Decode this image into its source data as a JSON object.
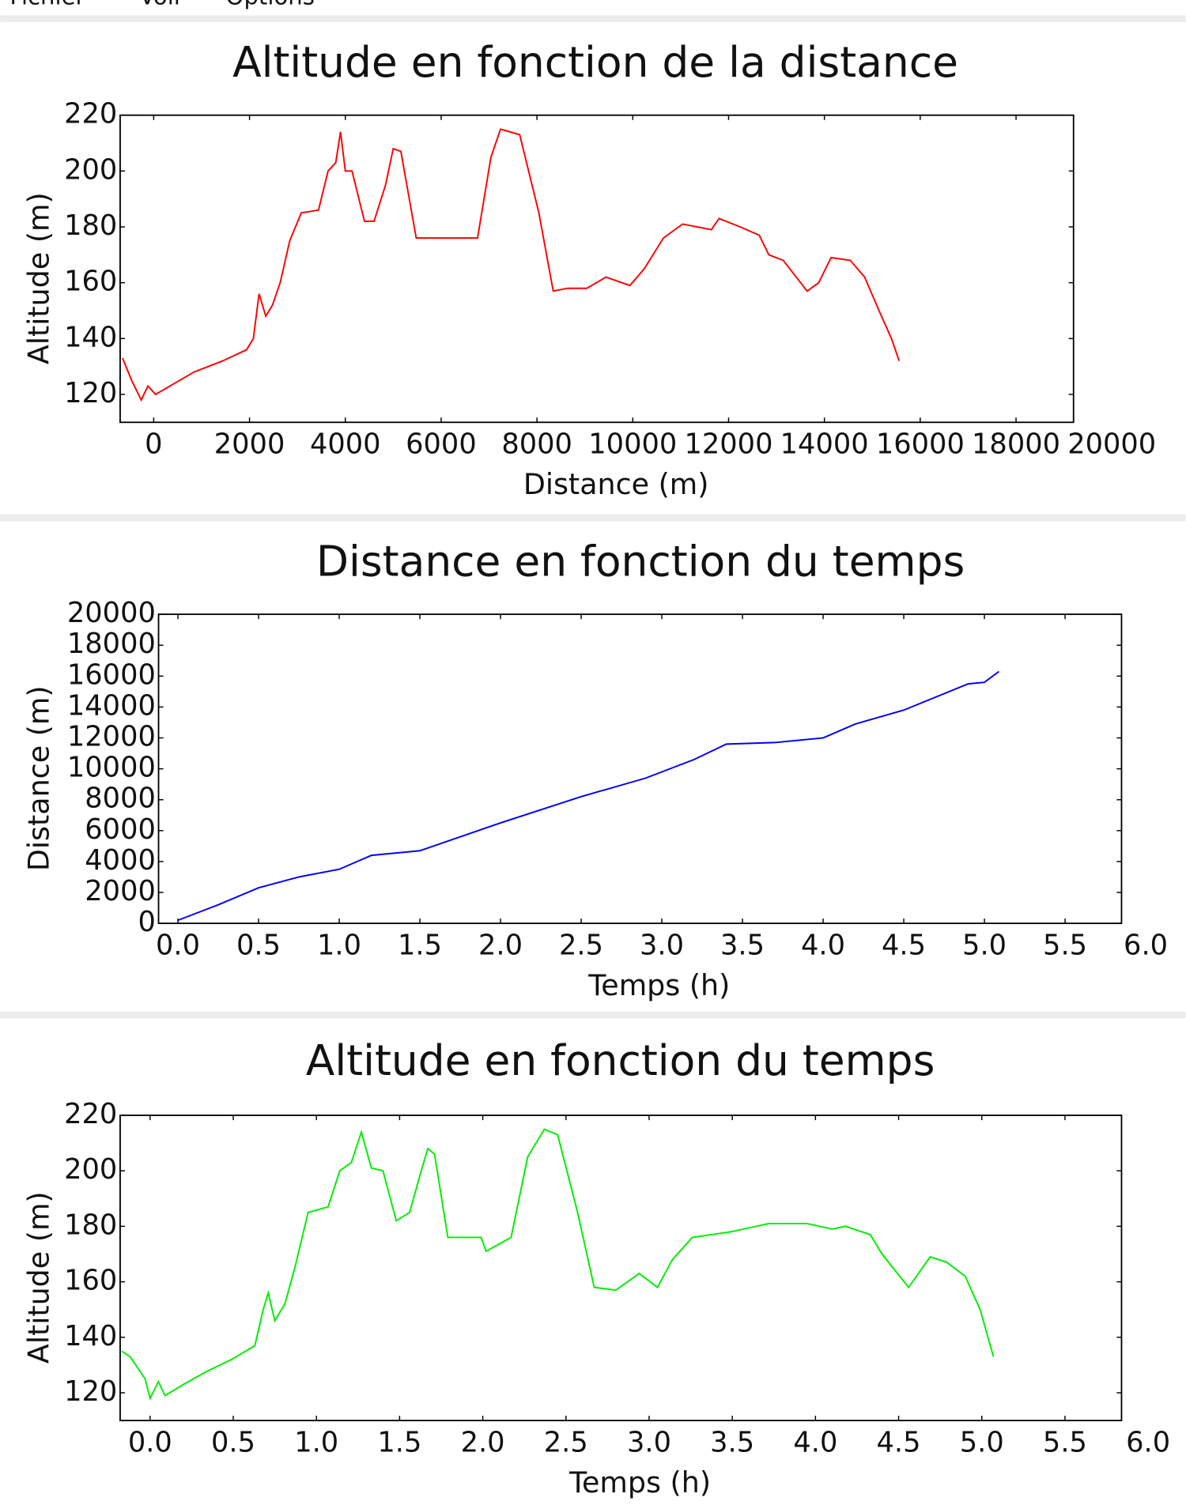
{
  "menu": [
    "Fichier",
    "Voir",
    "Options"
  ],
  "chart_data": [
    {
      "type": "line",
      "title": "Altitude en fonction de la distance",
      "x_label": "Distance (m)",
      "y_label": "Altitude (m)",
      "xlim": [
        -700,
        19200
      ],
      "ylim": [
        110,
        220
      ],
      "xticks": [
        0,
        2000,
        4000,
        6000,
        8000,
        10000,
        12000,
        14000,
        16000,
        18000,
        20000
      ],
      "yticks": [
        120,
        140,
        160,
        180,
        200,
        220
      ],
      "series": [
        {
          "name": "Altitude",
          "color": "#ff0000",
          "x": [
            -650,
            -460,
            -260,
            -120,
            40,
            440,
            840,
            1440,
            1940,
            2080,
            2200,
            2340,
            2480,
            2640,
            2840,
            3080,
            3440,
            3640,
            3800,
            3900,
            4000,
            4140,
            4400,
            4600,
            4840,
            5000,
            5160,
            5480,
            6040,
            6760,
            7040,
            7240,
            7640,
            8040,
            8340,
            8640,
            9040,
            9440,
            9940,
            10240,
            10640,
            11040,
            11640,
            11800,
            12240,
            12640,
            12840,
            13140,
            13640,
            13880,
            14140,
            14540,
            14840,
            15140,
            15400,
            15560
          ],
          "values": [
            133,
            125,
            118,
            123,
            120,
            124,
            128,
            132,
            136,
            140,
            156,
            148,
            152,
            160,
            175,
            185,
            186,
            200,
            203,
            214,
            200,
            200,
            182,
            182,
            195,
            208,
            207,
            176,
            176,
            176,
            205,
            215,
            213,
            185,
            157,
            158,
            158,
            162,
            159,
            165,
            176,
            181,
            179,
            183,
            180,
            177,
            170,
            168,
            157,
            160,
            169,
            168,
            162,
            150,
            140,
            132
          ]
        }
      ]
    },
    {
      "type": "line",
      "title": "Distance en fonction du temps",
      "x_label": "Temps (h)",
      "y_label": "Distance (m)",
      "xlim": [
        -0.12,
        5.85
      ],
      "ylim": [
        0,
        20000
      ],
      "xticks": [
        {
          "value": 0,
          "label": "0.0"
        },
        0.5,
        {
          "value": 1,
          "label": "1.0"
        },
        1.5,
        {
          "value": 2,
          "label": "2.0"
        },
        2.5,
        {
          "value": 3,
          "label": "3.0"
        },
        3.5,
        {
          "value": 4,
          "label": "4.0"
        },
        4.5,
        {
          "value": 5,
          "label": "5.0"
        },
        5.5,
        {
          "value": 6,
          "label": "6.0"
        }
      ],
      "yticks": [
        0,
        2000,
        4000,
        6000,
        8000,
        10000,
        12000,
        14000,
        16000,
        18000,
        20000
      ],
      "series": [
        {
          "name": "Distance",
          "color": "#0000ff",
          "x": [
            0,
            0.25,
            0.5,
            0.75,
            1,
            1.2,
            1.5,
            2,
            2.5,
            2.9,
            3.2,
            3.4,
            3.7,
            4,
            4.2,
            4.5,
            4.9,
            5.0,
            5.09
          ],
          "values": [
            200,
            1200,
            2300,
            3000,
            3500,
            4400,
            4700,
            6500,
            8200,
            9400,
            10600,
            11600,
            11700,
            12000,
            12900,
            13800,
            15500,
            15600,
            16300
          ]
        }
      ]
    },
    {
      "type": "line",
      "title": "Altitude en fonction du temps",
      "x_label": "Temps (h)",
      "y_label": "Altitude (m)",
      "xlim": [
        -0.18,
        5.84
      ],
      "ylim": [
        110,
        220
      ],
      "xticks": [
        {
          "value": 0,
          "label": "0.0"
        },
        0.5,
        {
          "value": 1,
          "label": "1.0"
        },
        1.5,
        {
          "value": 2,
          "label": "2.0"
        },
        2.5,
        {
          "value": 3,
          "label": "3.0"
        },
        3.5,
        {
          "value": 4,
          "label": "4.0"
        },
        4.5,
        {
          "value": 5,
          "label": "5.0"
        },
        5.5,
        {
          "value": 6,
          "label": "6.0"
        }
      ],
      "yticks": [
        120,
        140,
        160,
        180,
        200,
        220
      ],
      "series": [
        {
          "name": "Altitude",
          "color": "#00ee00",
          "x": [
            -0.17,
            -0.12,
            -0.03,
            0,
            0.05,
            0.09,
            0.2,
            0.35,
            0.49,
            0.63,
            0.68,
            0.71,
            0.75,
            0.81,
            0.87,
            0.95,
            1.07,
            1.14,
            1.21,
            1.27,
            1.33,
            1.4,
            1.48,
            1.56,
            1.63,
            1.67,
            1.71,
            1.79,
            1.99,
            2.02,
            2.17,
            2.27,
            2.37,
            2.45,
            2.57,
            2.67,
            2.8,
            2.94,
            3.05,
            3.14,
            3.26,
            3.49,
            3.72,
            3.95,
            4.1,
            4.18,
            4.33,
            4.4,
            4.56,
            4.69,
            4.79,
            4.9,
            4.99,
            5.07
          ],
          "values": [
            135,
            133,
            125,
            118,
            124,
            119,
            123,
            128,
            132,
            137,
            150,
            156,
            146,
            152,
            165,
            185,
            187,
            200,
            203,
            214,
            201,
            200,
            182,
            185,
            200,
            208,
            206,
            176,
            176,
            171,
            176,
            205,
            215,
            213,
            185,
            158,
            157,
            163,
            158,
            168,
            176,
            178,
            181,
            181,
            179,
            180,
            177,
            170,
            158,
            169,
            167,
            162,
            150,
            133
          ]
        }
      ]
    }
  ]
}
